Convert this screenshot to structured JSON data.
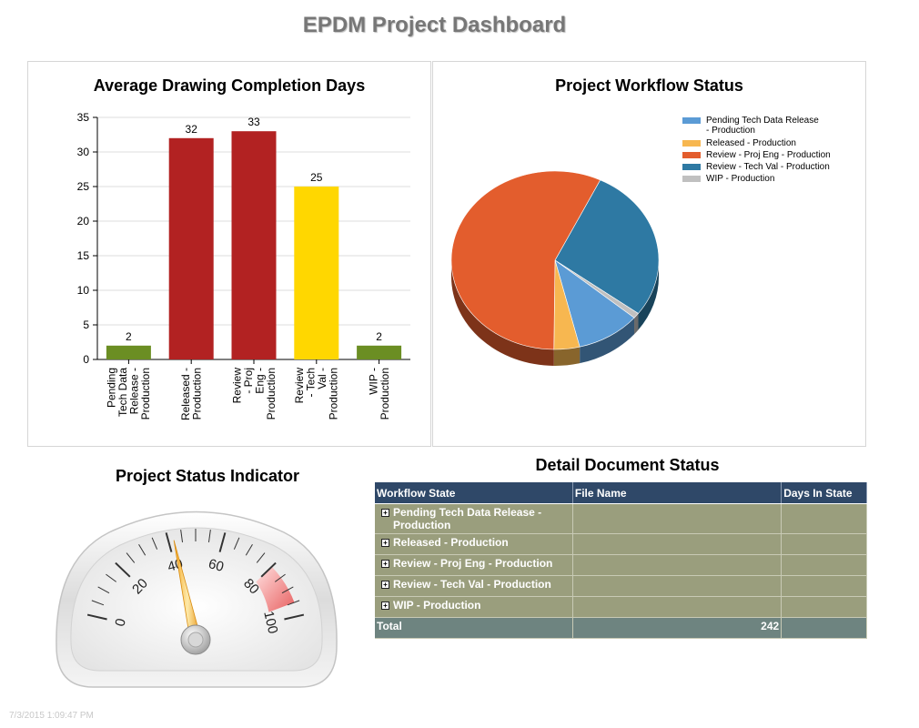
{
  "page": {
    "title": "EPDM Project Dashboard",
    "timestamp": "7/3/2015 1:09:47 PM"
  },
  "bar_panel": {
    "title": "Average Drawing Completion Days"
  },
  "pie_panel": {
    "title": "Project Workflow Status"
  },
  "gauge_panel": {
    "title": "Project Status Indicator"
  },
  "detail": {
    "title": "Detail Document Status",
    "headers": [
      "Workflow State",
      "File Name",
      "Days In State"
    ],
    "rows": [
      {
        "state": "Pending Tech Data Release - Production",
        "file": "",
        "days": ""
      },
      {
        "state": "Released - Production",
        "file": "",
        "days": ""
      },
      {
        "state": "Review - Proj Eng - Production",
        "file": "",
        "days": ""
      },
      {
        "state": "Review - Tech Val - Production",
        "file": "",
        "days": ""
      },
      {
        "state": "WIP - Production",
        "file": "",
        "days": ""
      }
    ],
    "total_label": "Total",
    "total_value": "242"
  },
  "gauge": {
    "value": 42,
    "min": 0,
    "max": 100,
    "ticks": [
      "0",
      "20",
      "40",
      "60",
      "80",
      "100"
    ],
    "danger_from": 80
  },
  "chart_data": [
    {
      "type": "bar",
      "title": "Average Drawing Completion Days",
      "categories": [
        "Pending Tech Data Release - Production",
        "Released - Production",
        "Review - Proj Eng - Production",
        "Review - Tech Val - Production",
        "WIP - Production"
      ],
      "category_label_lines": [
        [
          "Pending",
          "Tech Data",
          "Release -",
          "Production"
        ],
        [
          "Released -",
          "Production"
        ],
        [
          "Review",
          "- Proj",
          "Eng -",
          "Production"
        ],
        [
          "Review",
          "- Tech",
          "Val -",
          "Production"
        ],
        [
          "WIP -",
          "Production"
        ]
      ],
      "values": [
        2,
        32,
        33,
        25,
        2
      ],
      "data_labels": [
        "2",
        "32",
        "33",
        "25",
        "2"
      ],
      "colors": [
        "#6b8e23",
        "#b22222",
        "#b22222",
        "#ffd700",
        "#6b8e23"
      ],
      "ylim": [
        0,
        35
      ],
      "yticks": [
        0,
        5,
        10,
        15,
        20,
        25,
        30,
        35
      ],
      "grid": true
    },
    {
      "type": "pie",
      "title": "Project Workflow Status",
      "legend_position": "top-right",
      "slices": [
        {
          "name": "Pending Tech Data Release - Production",
          "value": 10,
          "color": "#5b9bd5"
        },
        {
          "name": "Released - Production",
          "value": 4,
          "color": "#f7b750"
        },
        {
          "name": "Review - Proj Eng - Production",
          "value": 57,
          "color": "#e35d2d"
        },
        {
          "name": "Review - Tech Val - Production",
          "value": 28,
          "color": "#2e79a3"
        },
        {
          "name": "WIP - Production",
          "value": 1,
          "color": "#c0c0c0"
        }
      ],
      "legend_lines": [
        [
          "Pending Tech Data Release",
          "- Production"
        ],
        [
          "Released - Production"
        ],
        [
          "Review - Proj Eng - Production"
        ],
        [
          "Review - Tech Val - Production"
        ],
        [
          "WIP - Production"
        ]
      ]
    }
  ]
}
